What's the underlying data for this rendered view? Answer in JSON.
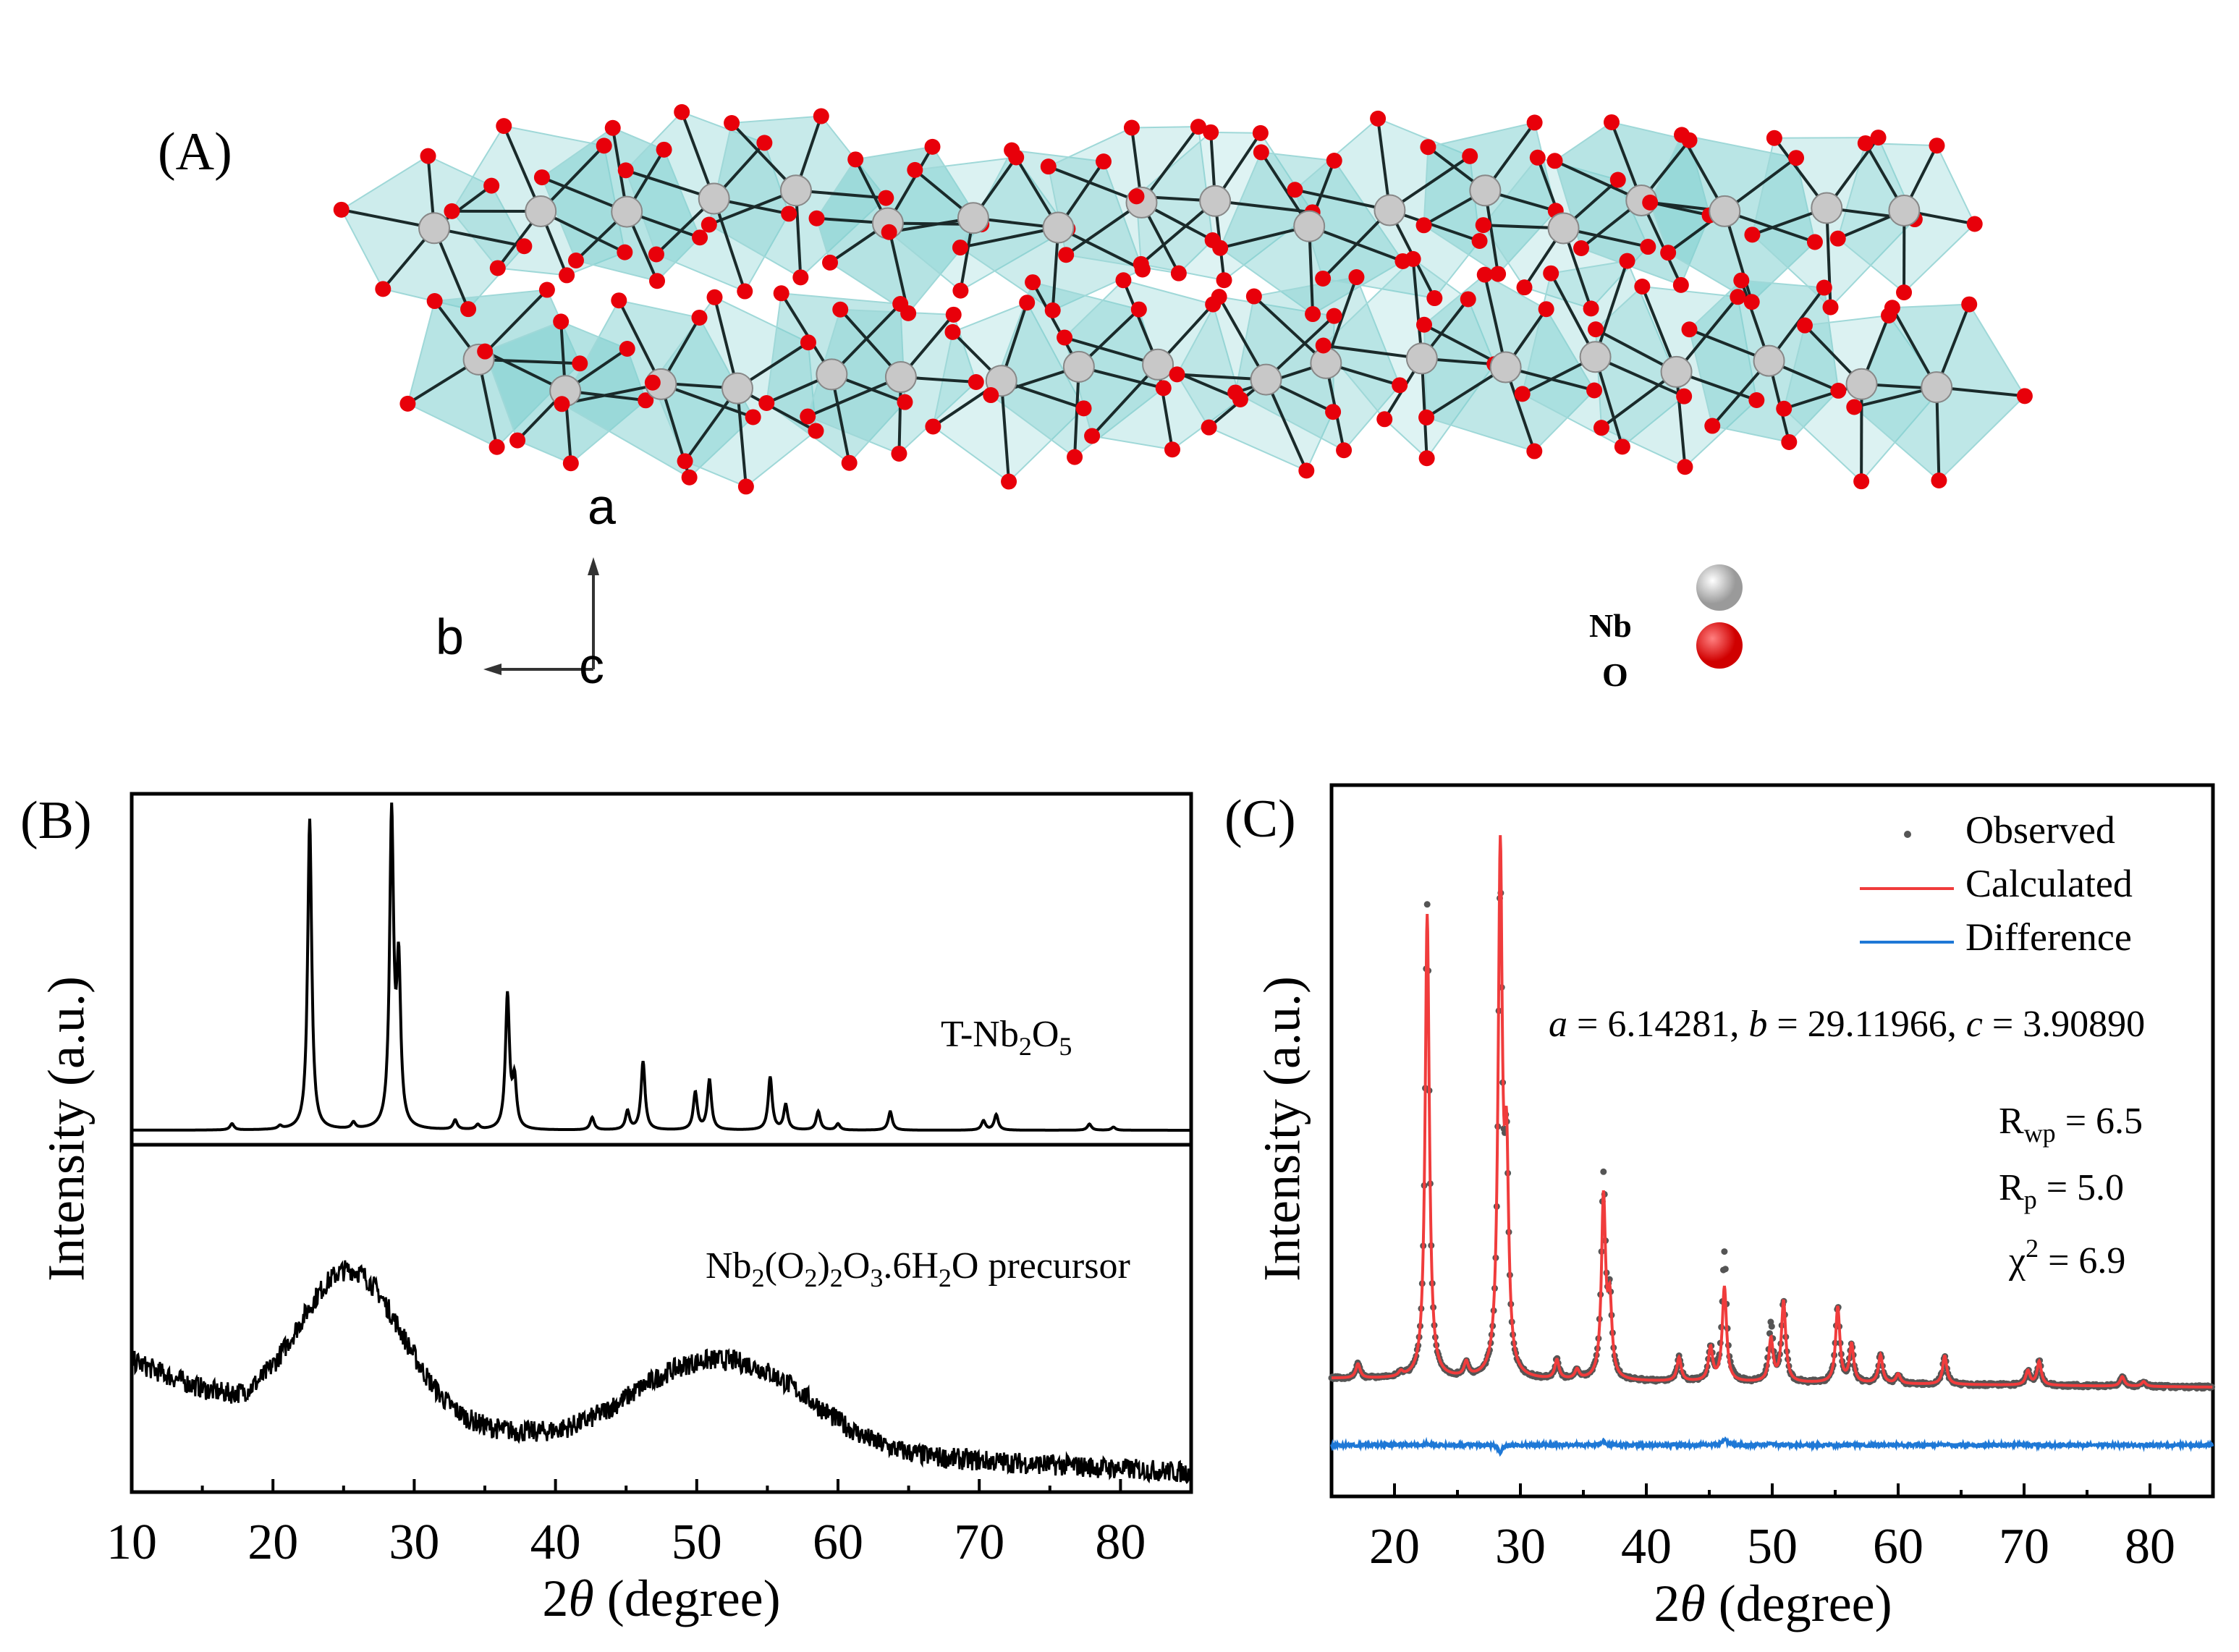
{
  "panel_a": {
    "label": "(A)",
    "axes": {
      "a": "a",
      "b": "b",
      "c": "c"
    },
    "legend": [
      {
        "element": "Nb",
        "color": "#c8c8c8"
      },
      {
        "element": "O",
        "color": "#e8000a"
      }
    ],
    "polyhedra_color": "#7fcfcf"
  },
  "chart_data": [
    {
      "id": "B",
      "type": "line",
      "panel_label": "(B)",
      "xlabel_prefix": "2",
      "xlabel_theta": "θ",
      "xlabel_suffix": "(degree)",
      "ylabel": "Intensity (a.u.)",
      "xlim": [
        10,
        85
      ],
      "xticks": [
        "10",
        "20",
        "30",
        "40",
        "50",
        "60",
        "70",
        "80"
      ],
      "series": [
        {
          "name": "T-Nb2O5",
          "label_parts": [
            {
              "t": "T-Nb"
            },
            {
              "t": "2",
              "sub": true
            },
            {
              "t": "O"
            },
            {
              "t": "5",
              "sub": true
            }
          ],
          "color": "#000000",
          "peaks": [
            [
              17.1,
              0.02
            ],
            [
              20.5,
              0.01
            ],
            [
              22.6,
              1.0
            ],
            [
              25.7,
              0.02
            ],
            [
              28.4,
              1.0
            ],
            [
              28.9,
              0.5
            ],
            [
              32.9,
              0.03
            ],
            [
              34.5,
              0.015
            ],
            [
              36.6,
              0.43
            ],
            [
              37.1,
              0.15
            ],
            [
              42.6,
              0.04
            ],
            [
              45.1,
              0.06
            ],
            [
              46.2,
              0.22
            ],
            [
              49.9,
              0.12
            ],
            [
              50.9,
              0.16
            ],
            [
              55.2,
              0.17
            ],
            [
              56.3,
              0.08
            ],
            [
              58.6,
              0.06
            ],
            [
              60.0,
              0.02
            ],
            [
              63.7,
              0.06
            ],
            [
              70.3,
              0.03
            ],
            [
              71.2,
              0.05
            ],
            [
              77.8,
              0.02
            ],
            [
              79.5,
              0.01
            ]
          ]
        },
        {
          "name": "Nb2(O2)2O3.6H2O precursor",
          "label_parts": [
            {
              "t": "Nb"
            },
            {
              "t": "2",
              "sub": true
            },
            {
              "t": "(O"
            },
            {
              "t": "2",
              "sub": true
            },
            {
              "t": ")"
            },
            {
              "t": "2",
              "sub": true
            },
            {
              "t": "O"
            },
            {
              "t": "3",
              "sub": true
            },
            {
              "t": ".6H"
            },
            {
              "t": "2",
              "sub": true
            },
            {
              "t": "O precursor"
            }
          ],
          "color": "#000000",
          "humps": [
            [
              25.5,
              0.62,
              3.6
            ],
            [
              48,
              0.2,
              4
            ],
            [
              54.5,
              0.28,
              4.5
            ]
          ],
          "background": [
            [
              10,
              0.5
            ],
            [
              18,
              0.3
            ],
            [
              40,
              0.18
            ],
            [
              85,
              0.03
            ]
          ]
        }
      ]
    },
    {
      "id": "C",
      "type": "line",
      "panel_label": "(C)",
      "xlabel_prefix": "2",
      "xlabel_theta": "θ",
      "xlabel_suffix": "(degree)",
      "ylabel": "Intensity (a.u.)",
      "xlim": [
        15,
        85
      ],
      "xticks": [
        "20",
        "30",
        "40",
        "50",
        "60",
        "70",
        "80"
      ],
      "legend": [
        {
          "name": "Observed",
          "color": "#555555",
          "style": "dot"
        },
        {
          "name": "Calculated",
          "color": "#f03c3c",
          "style": "line"
        },
        {
          "name": "Difference",
          "color": "#1e78d6",
          "style": "line"
        }
      ],
      "lattice": {
        "a_label": "a",
        "a_value": "6.14281",
        "b_label": "b",
        "b_value": "29.11966",
        "c_label": "c",
        "c_value": "3.90890"
      },
      "stats": [
        {
          "sym": "R",
          "sub": "wp",
          "sup": "",
          "value": "6.5"
        },
        {
          "sym": "R",
          "sub": "p",
          "sup": "",
          "value": "5.0"
        },
        {
          "sym": "χ",
          "sub": "",
          "sup": "2",
          "value": "6.9"
        }
      ],
      "observed_peaks": [
        [
          17.1,
          0.03
        ],
        [
          20.5,
          0.01
        ],
        [
          22.6,
          1.0
        ],
        [
          25.7,
          0.03
        ],
        [
          28.4,
          1.0
        ],
        [
          28.9,
          0.42
        ],
        [
          32.9,
          0.04
        ],
        [
          34.5,
          0.02
        ],
        [
          36.6,
          0.42
        ],
        [
          37.1,
          0.15
        ],
        [
          42.6,
          0.05
        ],
        [
          45.1,
          0.07
        ],
        [
          46.2,
          0.27
        ],
        [
          49.9,
          0.12
        ],
        [
          50.9,
          0.17
        ],
        [
          55.2,
          0.16
        ],
        [
          56.3,
          0.08
        ],
        [
          58.6,
          0.06
        ],
        [
          60.0,
          0.02
        ],
        [
          63.7,
          0.06
        ],
        [
          70.3,
          0.03
        ],
        [
          71.2,
          0.05
        ],
        [
          77.8,
          0.02
        ],
        [
          79.5,
          0.01
        ]
      ],
      "calculated_peaks": [
        [
          17.1,
          0.03
        ],
        [
          20.5,
          0.01
        ],
        [
          22.6,
          0.98
        ],
        [
          25.7,
          0.03
        ],
        [
          28.4,
          1.09
        ],
        [
          28.9,
          0.42
        ],
        [
          32.9,
          0.04
        ],
        [
          34.5,
          0.02
        ],
        [
          36.6,
          0.38
        ],
        [
          37.1,
          0.15
        ],
        [
          42.6,
          0.05
        ],
        [
          45.1,
          0.07
        ],
        [
          46.2,
          0.2
        ],
        [
          49.9,
          0.09
        ],
        [
          50.9,
          0.17
        ],
        [
          55.2,
          0.16
        ],
        [
          56.3,
          0.08
        ],
        [
          58.6,
          0.06
        ],
        [
          60.0,
          0.02
        ],
        [
          63.7,
          0.06
        ],
        [
          70.3,
          0.03
        ],
        [
          71.2,
          0.05
        ],
        [
          77.8,
          0.02
        ],
        [
          79.5,
          0.01
        ]
      ]
    }
  ]
}
